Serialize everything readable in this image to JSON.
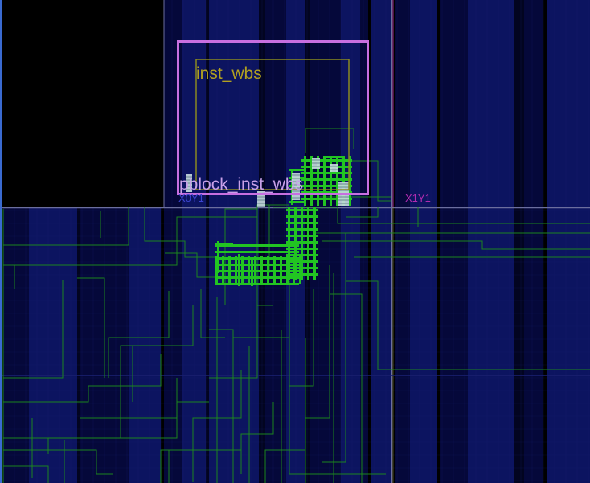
{
  "device_view": {
    "clock_regions": [
      {
        "name": "X0Y1"
      },
      {
        "name": "X1Y1"
      }
    ],
    "cells": {
      "instance_label": "inst_wbs"
    },
    "pblock": {
      "label": "pblock_inst_wbs"
    },
    "colors": {
      "background": "#000000",
      "column_dark": "#05083a",
      "column_mid": "#0c1460",
      "column_deep": "#020420",
      "grid_line": "#1a2070",
      "clock_region_border": "#6b6e9e",
      "clock_region_label_x0y1": "#3c44d0",
      "clock_region_label_x1y1": "#b02cb0",
      "region_divider_magenta": "#9a2a8a",
      "pblock_border": "#c86fe0",
      "pblock_label": "#c8a0e8",
      "instance_border": "#8a8a20",
      "instance_label": "#b2a020",
      "net_route": "#1c8a1c",
      "placed_cell": "#22c422",
      "selected_site": "#c8dce0",
      "left_edge": "#3a6ad0"
    }
  }
}
